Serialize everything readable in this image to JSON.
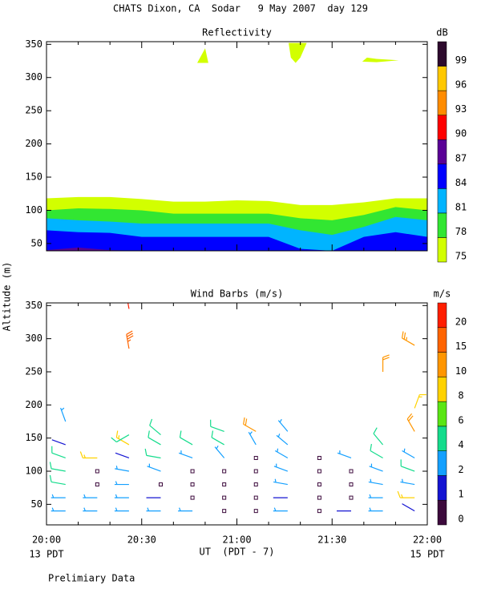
{
  "title": "CHATS Dixon, CA  Sodar   9 May 2007  day 129",
  "ylabel": "Altitude (m)",
  "footnote": "Prelimiary Data",
  "chart_data": [
    {
      "type": "contour",
      "title": "Reflectivity",
      "x": [
        0,
        10,
        20,
        30,
        40,
        50,
        60,
        70,
        80,
        90,
        100,
        110,
        120
      ],
      "series": [
        {
          "color": "#d2ff00",
          "values": [
            118,
            120,
            120,
            117,
            113,
            113,
            115,
            114,
            108,
            108,
            112,
            118,
            118
          ]
        },
        {
          "color": "#32e632",
          "values": [
            100,
            103,
            102,
            100,
            95,
            95,
            95,
            95,
            88,
            85,
            93,
            105,
            100
          ]
        },
        {
          "color": "#00b4ff",
          "values": [
            88,
            85,
            83,
            80,
            80,
            80,
            80,
            80,
            70,
            63,
            75,
            90,
            85
          ]
        },
        {
          "color": "#0000ff",
          "values": [
            70,
            67,
            66,
            60,
            60,
            60,
            60,
            60,
            42,
            39,
            60,
            67,
            60
          ]
        },
        {
          "color": "#5a0096",
          "values": [
            40,
            44,
            40,
            39,
            39,
            39,
            39,
            39,
            39,
            39,
            39,
            39,
            39
          ]
        }
      ],
      "patches": [
        {
          "color": "#d2ff00",
          "x": [
            47.5,
            50,
            51
          ],
          "y": [
            322,
            344,
            322
          ]
        },
        {
          "color": "#d2ff00",
          "x": [
            76.3,
            82,
            80,
            78.5,
            77
          ],
          "y": [
            352,
            352,
            330,
            322,
            330
          ]
        },
        {
          "color": "#d2ff00",
          "x": [
            99.5,
            101,
            104,
            111,
            104
          ],
          "y": [
            324,
            330,
            328,
            326,
            323
          ]
        }
      ],
      "xlim": [
        0,
        120
      ],
      "xticks": [
        0,
        30,
        60,
        90,
        120
      ],
      "xminorticks": [
        10,
        20,
        40,
        50,
        70,
        80,
        100,
        110
      ],
      "ylim": [
        39,
        354
      ],
      "yticks": [
        50,
        100,
        150,
        200,
        250,
        300,
        350
      ],
      "colorbar": {
        "label": "dB",
        "ticks": [
          75,
          78,
          81,
          84,
          87,
          90,
          93,
          96,
          99
        ],
        "colors": [
          "#d2ff00",
          "#32e632",
          "#00b4ff",
          "#0000ff",
          "#5a0096",
          "#ff0000",
          "#ff8c00",
          "#ffc800",
          "#2d0a2d"
        ]
      }
    },
    {
      "type": "barbs",
      "title": "Wind Barbs (m/s)",
      "barbs": {
        "x": [
          6,
          6,
          6,
          6,
          6,
          6,
          6,
          16,
          16,
          16,
          16,
          16,
          26,
          26,
          26,
          26,
          26,
          26,
          26,
          26,
          26,
          36,
          36,
          36,
          36,
          36,
          36,
          36,
          46,
          46,
          46,
          46,
          46,
          46,
          56,
          56,
          56,
          56,
          56,
          56,
          56,
          66,
          66,
          66,
          66,
          66,
          66,
          66,
          76,
          76,
          76,
          76,
          76,
          76,
          76,
          86,
          86,
          86,
          86,
          86,
          96,
          96,
          96,
          96,
          96,
          106,
          106,
          106,
          106,
          106,
          106,
          106,
          116,
          116,
          116,
          116,
          116,
          116,
          116,
          116
        ],
        "y": [
          40,
          60,
          80,
          100,
          120,
          140,
          175,
          40,
          60,
          80,
          100,
          120,
          40,
          60,
          80,
          100,
          120,
          140,
          155,
          285,
          345,
          40,
          60,
          80,
          100,
          120,
          140,
          155,
          40,
          60,
          80,
          100,
          120,
          140,
          40,
          60,
          80,
          100,
          120,
          140,
          160,
          40,
          60,
          80,
          100,
          120,
          140,
          160,
          40,
          60,
          80,
          100,
          120,
          140,
          160,
          40,
          60,
          80,
          100,
          120,
          40,
          60,
          80,
          100,
          120,
          40,
          60,
          80,
          100,
          120,
          140,
          250,
          40,
          60,
          80,
          100,
          120,
          160,
          195,
          290
        ],
        "speed": [
          3,
          3,
          5,
          5,
          5,
          1.5,
          3,
          3,
          3,
          0.5,
          0.5,
          8.5,
          3,
          3,
          3,
          3,
          1.5,
          8,
          5,
          18,
          21,
          3,
          1.5,
          0.5,
          3,
          5,
          5,
          5,
          3,
          0.5,
          0.5,
          0.5,
          3,
          5,
          0.5,
          0.5,
          0.5,
          0.5,
          3,
          5,
          5,
          0.5,
          0.5,
          0.5,
          0.5,
          0.5,
          3,
          11,
          3,
          1.5,
          3,
          3,
          3,
          3,
          3,
          0.5,
          0.5,
          0.5,
          0.5,
          0.5,
          1.5,
          0.5,
          0.5,
          0.5,
          3,
          3,
          3,
          3,
          3,
          5,
          5,
          12,
          1.5,
          8,
          3,
          5,
          3,
          11,
          9,
          13
        ],
        "direction": [
          270,
          270,
          280,
          280,
          290,
          290,
          340,
          270,
          270,
          0,
          0,
          270,
          270,
          270,
          270,
          280,
          290,
          300,
          240,
          350,
          350,
          270,
          270,
          0,
          290,
          280,
          300,
          310,
          270,
          0,
          0,
          0,
          290,
          300,
          0,
          0,
          0,
          0,
          320,
          300,
          290,
          0,
          0,
          0,
          0,
          0,
          330,
          300,
          270,
          270,
          280,
          290,
          300,
          310,
          320,
          0,
          0,
          0,
          0,
          0,
          270,
          0,
          0,
          0,
          290,
          270,
          270,
          280,
          290,
          300,
          320,
          360,
          300,
          270,
          280,
          290,
          300,
          330,
          20,
          300
        ]
      },
      "xlim": [
        0,
        120
      ],
      "xticks": [
        {
          "value": 0,
          "label": "20:00"
        },
        {
          "value": 30,
          "label": "20:30"
        },
        {
          "value": 60,
          "label": "21:00"
        },
        {
          "value": 90,
          "label": "21:30"
        },
        {
          "value": 120,
          "label": "22:00"
        }
      ],
      "xminorticks": [
        10,
        20,
        40,
        50,
        70,
        80,
        100,
        110
      ],
      "xlabel": "UT  (PDT - 7)",
      "date_labels": [
        {
          "value": 0,
          "label": "13 PDT"
        },
        {
          "value": 120,
          "label": "15 PDT"
        }
      ],
      "ylim": [
        19,
        354
      ],
      "yticks": [
        50,
        100,
        150,
        200,
        250,
        300,
        350
      ],
      "colorbar": {
        "label": "m/s",
        "ticks": [
          0,
          1,
          2,
          4,
          6,
          8,
          10,
          15,
          20
        ],
        "colors": [
          "#3c0a3c",
          "#1414d2",
          "#14a0ff",
          "#14dc8c",
          "#5ae614",
          "#ffd200",
          "#ff9600",
          "#ff6400",
          "#ff1e00"
        ]
      }
    }
  ]
}
